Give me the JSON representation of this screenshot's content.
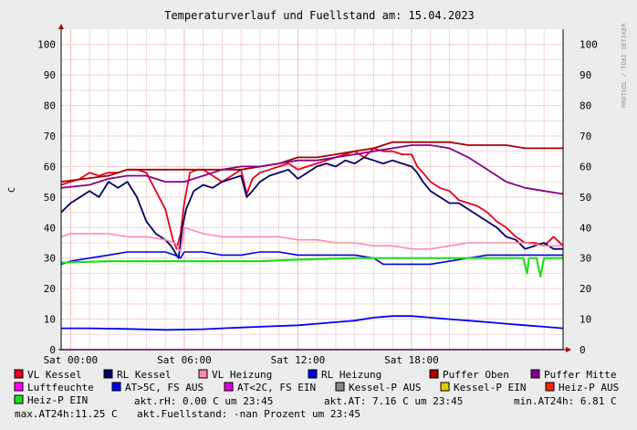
{
  "chart_data": {
    "type": "line",
    "title": "Temperaturverlauf und Fuellstand am: 15.04.2023",
    "ylabel": "C",
    "watermark": "RRDTOOL / TOBI OETIKER",
    "ylim": [
      0,
      105
    ],
    "yticks": [
      0,
      10,
      20,
      30,
      40,
      50,
      60,
      70,
      80,
      90,
      100
    ],
    "xlim_hours": [
      -0.5,
      26.0
    ],
    "xticks": [
      {
        "hour": 0,
        "label": "Sat 00:00"
      },
      {
        "hour": 6,
        "label": "Sat 06:00"
      },
      {
        "hour": 12,
        "label": "Sat 12:00"
      },
      {
        "hour": 18,
        "label": "Sat 18:00"
      }
    ],
    "grid": true,
    "legend_position": "bottom",
    "series": [
      {
        "name": "VL Kessel",
        "color": "#e8001b",
        "width": 1.8,
        "x": [
          -0.5,
          0.5,
          1.0,
          1.5,
          2.0,
          2.5,
          3.0,
          3.5,
          4.0,
          4.5,
          5.0,
          5.4,
          5.6,
          5.8,
          6.0,
          6.3,
          6.7,
          7.0,
          7.5,
          8.0,
          8.5,
          9.0,
          9.3,
          9.6,
          10.0,
          10.5,
          11.0,
          11.5,
          12.0,
          12.5,
          13.0,
          13.5,
          14.0,
          14.5,
          15.0,
          15.5,
          16.0,
          16.5,
          17.0,
          17.5,
          18.0,
          18.3,
          18.6,
          19.0,
          19.5,
          20.0,
          20.5,
          21.0,
          21.5,
          22.0,
          22.5,
          23.0,
          23.5,
          24.0,
          24.5,
          25.0,
          25.5,
          26.0
        ],
        "y": [
          54,
          56,
          58,
          57,
          58,
          58,
          59,
          59,
          58,
          52,
          46,
          36,
          33,
          38,
          48,
          58,
          59,
          59,
          57,
          55,
          57,
          59,
          51,
          56,
          58,
          59,
          60,
          61,
          59,
          60,
          61,
          62,
          63,
          64,
          65,
          63,
          66,
          65,
          65,
          64,
          64,
          60,
          58,
          55,
          53,
          52,
          49,
          48,
          47,
          45,
          42,
          40,
          37,
          35,
          35,
          34,
          37,
          34
        ]
      },
      {
        "name": "RL Kessel",
        "color": "#000066",
        "width": 1.8,
        "x": [
          -0.5,
          0.0,
          0.5,
          1.0,
          1.5,
          2.0,
          2.5,
          3.0,
          3.5,
          4.0,
          4.5,
          5.0,
          5.3,
          5.5,
          5.7,
          5.9,
          6.1,
          6.5,
          7.0,
          7.5,
          8.0,
          8.5,
          9.0,
          9.3,
          9.6,
          10.0,
          10.5,
          11.0,
          11.5,
          12.0,
          12.5,
          13.0,
          13.5,
          14.0,
          14.5,
          15.0,
          15.5,
          16.0,
          16.5,
          17.0,
          17.5,
          18.0,
          18.3,
          18.6,
          19.0,
          19.5,
          20.0,
          20.5,
          21.0,
          21.5,
          22.0,
          22.5,
          23.0,
          23.5,
          24.0,
          24.5,
          25.0,
          25.5,
          26.0
        ],
        "y": [
          45,
          48,
          50,
          52,
          50,
          55,
          53,
          55,
          50,
          42,
          38,
          36,
          34,
          32,
          30,
          40,
          46,
          52,
          54,
          53,
          55,
          56,
          57,
          50,
          52,
          55,
          57,
          58,
          59,
          56,
          58,
          60,
          61,
          60,
          62,
          61,
          63,
          62,
          61,
          62,
          61,
          60,
          58,
          55,
          52,
          50,
          48,
          48,
          46,
          44,
          42,
          40,
          37,
          36,
          33,
          34,
          35,
          33,
          33
        ]
      },
      {
        "name": "VL Heizung",
        "color": "#ff8ab0",
        "width": 1.6,
        "x": [
          -0.5,
          0.0,
          1.0,
          2.0,
          3.0,
          4.0,
          5.0,
          5.5,
          5.8,
          6.0,
          7.0,
          8.0,
          9.0,
          10.0,
          11.0,
          12.0,
          13.0,
          14.0,
          15.0,
          16.0,
          17.0,
          18.0,
          19.0,
          20.0,
          21.0,
          22.0,
          23.0,
          24.0,
          25.0,
          26.0
        ],
        "y": [
          37,
          38,
          38,
          38,
          37,
          37,
          36,
          35,
          32,
          40,
          38,
          37,
          37,
          37,
          37,
          36,
          36,
          35,
          35,
          34,
          34,
          33,
          33,
          34,
          35,
          35,
          35,
          35,
          34,
          34
        ]
      },
      {
        "name": "RL Heizung",
        "color": "#0000e0",
        "width": 1.6,
        "x": [
          -0.5,
          0.0,
          1.0,
          2.0,
          3.0,
          4.0,
          5.0,
          5.5,
          5.8,
          6.0,
          7.0,
          8.0,
          9.0,
          10.0,
          11.0,
          12.0,
          13.0,
          14.0,
          15.0,
          16.0,
          16.5,
          17.0,
          18.0,
          19.0,
          20.0,
          21.0,
          22.0,
          23.0,
          24.0,
          25.0,
          26.0
        ],
        "y": [
          28,
          29,
          30,
          31,
          32,
          32,
          32,
          31,
          30,
          32,
          32,
          31,
          31,
          32,
          32,
          31,
          31,
          31,
          31,
          30,
          28,
          28,
          28,
          28,
          29,
          30,
          31,
          31,
          31,
          31,
          31
        ]
      },
      {
        "name": "Puffer Oben",
        "color": "#aa0000",
        "width": 1.8,
        "x": [
          -0.5,
          2.0,
          3.0,
          5.0,
          7.0,
          9.0,
          11.0,
          12.0,
          13.0,
          14.0,
          15.0,
          16.0,
          16.5,
          17.0,
          18.0,
          19.0,
          20.0,
          21.0,
          22.0,
          23.0,
          24.0,
          25.0,
          26.0
        ],
        "y": [
          55,
          57,
          59,
          59,
          59,
          59,
          61,
          63,
          63,
          64,
          65,
          66,
          67,
          68,
          68,
          68,
          68,
          67,
          67,
          67,
          66,
          66,
          66
        ]
      },
      {
        "name": "Puffer Mitte",
        "color": "#880088",
        "width": 1.8,
        "x": [
          -0.5,
          1.0,
          2.0,
          3.0,
          4.0,
          5.0,
          6.0,
          7.0,
          8.0,
          9.0,
          10.0,
          11.0,
          12.0,
          13.0,
          14.0,
          15.0,
          16.0,
          17.0,
          18.0,
          19.0,
          20.0,
          21.0,
          22.0,
          23.0,
          24.0,
          25.0,
          26.0
        ],
        "y": [
          53,
          54,
          56,
          57,
          57,
          55,
          55,
          57,
          59,
          60,
          60,
          61,
          62,
          62,
          63,
          64,
          65,
          66,
          67,
          67,
          66,
          63,
          59,
          55,
          53,
          52,
          51
        ]
      },
      {
        "name": "Luftfeuchte",
        "color": "#ff00ff",
        "width": 1.6,
        "x": [
          -0.5,
          26.0
        ],
        "y": [
          0,
          0
        ]
      },
      {
        "name": "AT>5C, FS AUS",
        "color": "#0000ff",
        "width": 1.8,
        "x": [
          -0.5,
          1.0,
          3.0,
          5.0,
          7.0,
          8.0,
          10.0,
          12.0,
          13.0,
          14.0,
          15.0,
          16.0,
          17.0,
          18.0,
          19.0,
          20.0,
          21.0,
          22.0,
          23.0,
          24.0,
          25.0,
          26.0
        ],
        "y": [
          7,
          7,
          6.8,
          6.5,
          6.7,
          7,
          7.5,
          8,
          8.5,
          9,
          9.5,
          10.5,
          11,
          11,
          10.5,
          10,
          9.5,
          9,
          8.5,
          8,
          7.5,
          7
        ]
      },
      {
        "name": "AT<2C, FS EIN",
        "color": "#e000e0",
        "width": 0,
        "x": [],
        "y": []
      },
      {
        "name": "Kessel-P AUS",
        "color": "#888888",
        "width": 0,
        "x": [],
        "y": []
      },
      {
        "name": "Kessel-P EIN",
        "color": "#ddcc00",
        "width": 0,
        "x": [],
        "y": []
      },
      {
        "name": "Heiz-P AUS",
        "color": "#ff2200",
        "width": 0,
        "x": [],
        "y": []
      },
      {
        "name": "Heiz-P EIN",
        "color": "#22dd22",
        "width": 2.2,
        "x": [
          -0.5,
          2.0,
          5.0,
          8.0,
          10.0,
          12.0,
          15.0,
          17.0,
          20.0,
          22.0,
          23.9,
          24.1,
          24.2,
          24.6,
          24.8,
          25.0,
          26.0
        ],
        "y": [
          28.5,
          29,
          29,
          29,
          29,
          29.5,
          30,
          30,
          30,
          30,
          30,
          25,
          30,
          30,
          24,
          30,
          30
        ]
      }
    ]
  },
  "legend": [
    {
      "label": "VL Kessel",
      "color": "#e8001b"
    },
    {
      "label": "RL Kessel",
      "color": "#000066"
    },
    {
      "label": "VL Heizung",
      "color": "#ff8ab0"
    },
    {
      "label": "RL Heizung",
      "color": "#0000e0"
    },
    {
      "label": "Puffer Oben",
      "color": "#aa0000"
    },
    {
      "label": "Puffer Mitte",
      "color": "#880088"
    },
    {
      "label": "Luftfeuchte",
      "color": "#ff00ff"
    },
    {
      "label": "AT>5C, FS AUS",
      "color": "#0000ff"
    },
    {
      "label": "AT<2C, FS EIN",
      "color": "#e000e0"
    },
    {
      "label": "Kessel-P AUS",
      "color": "#888888"
    },
    {
      "label": "Kessel-P EIN",
      "color": "#ddcc00"
    },
    {
      "label": "Heiz-P AUS",
      "color": "#ff2200"
    },
    {
      "label": "Heiz-P EIN",
      "color": "#22dd22"
    }
  ],
  "stats": {
    "akt_rh": "akt.rH: 0.00 C um 23:45",
    "akt_at": "akt.AT: 7.16 C um 23:45",
    "min_at": "min.AT24h: 6.81 C",
    "max_at": "max.AT24h:11.25 C",
    "fuellstand": "akt.Fuellstand: -nan Prozent um 23:45"
  }
}
